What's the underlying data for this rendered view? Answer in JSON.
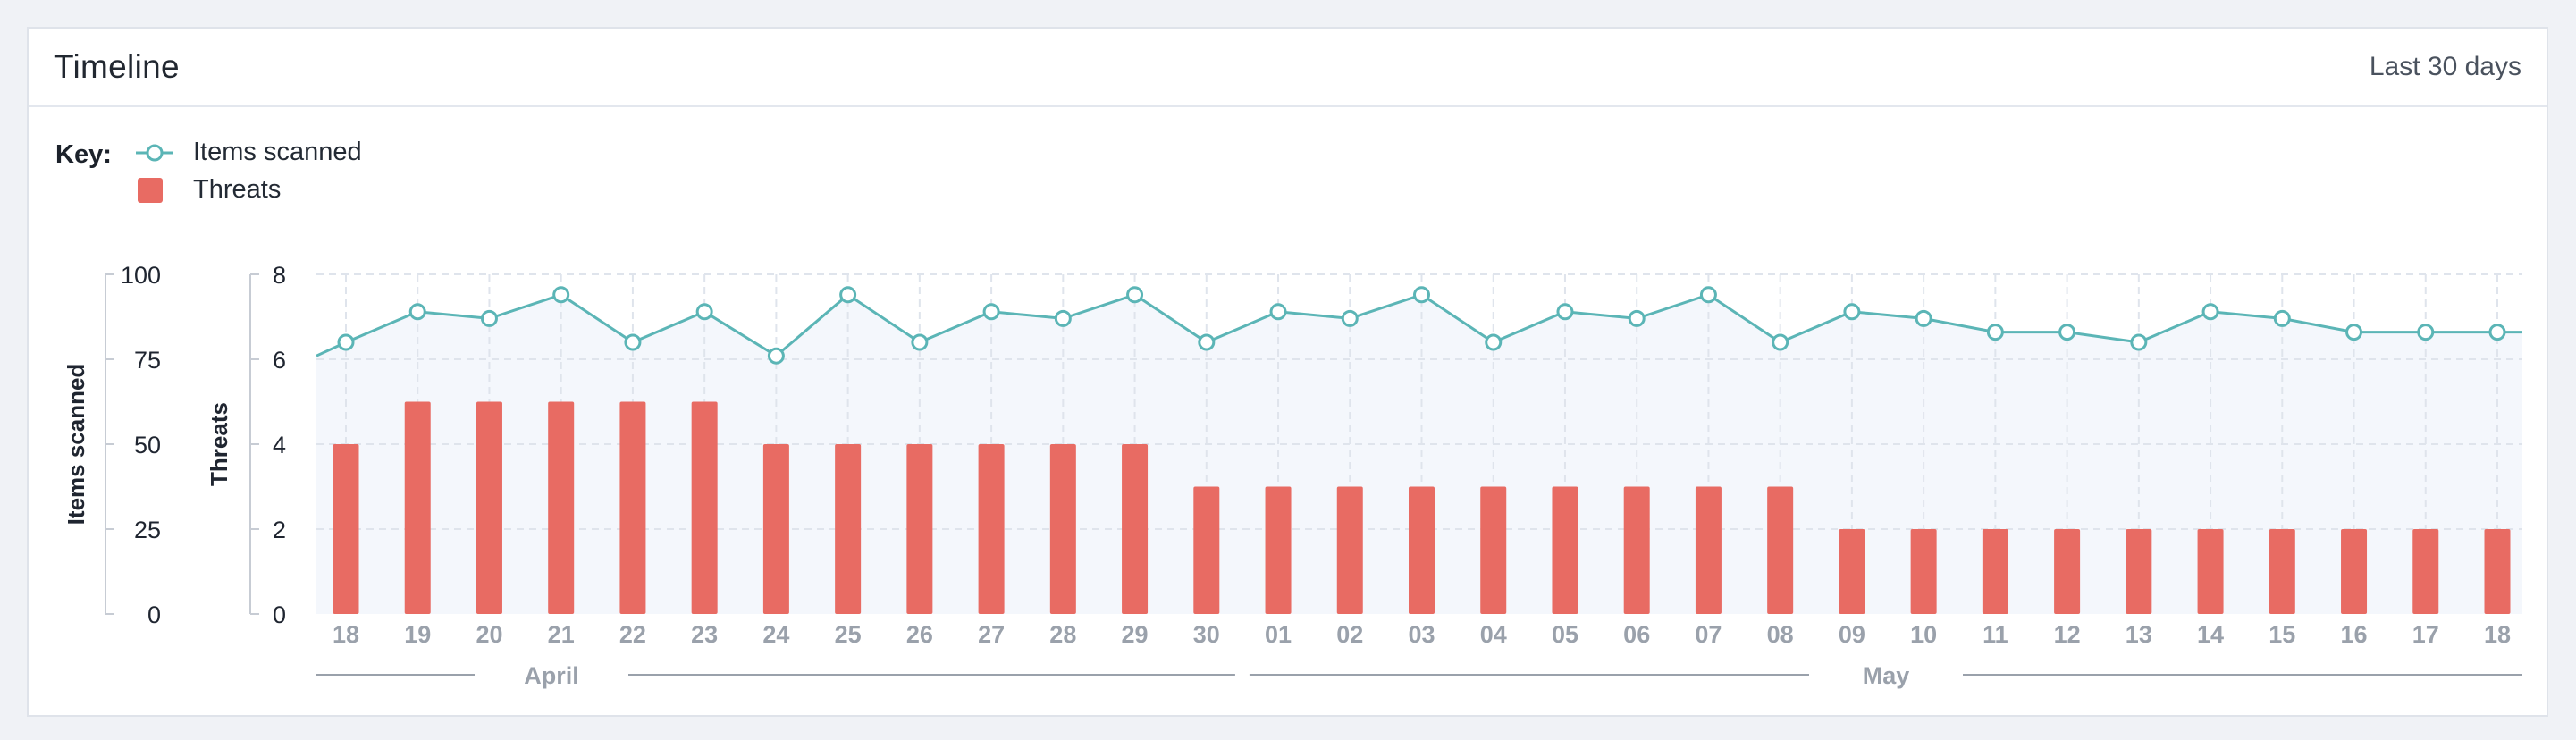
{
  "card": {
    "title": "Timeline",
    "range": "Last 30 days"
  },
  "legend": {
    "key_label": "Key:",
    "items": [
      {
        "label": "Items scanned",
        "marker": "circle-line",
        "color": "#5bb5b6"
      },
      {
        "label": "Threats",
        "marker": "square",
        "color": "#e86b63"
      }
    ]
  },
  "colors": {
    "line": "#5bb5b6",
    "bar": "#e86b63",
    "area": "#f4f7fc",
    "grid": "#dfe4ec",
    "axis_text": "#1f2530",
    "tick_text": "#9aa1ab"
  },
  "chart_data": {
    "type": "bar",
    "categories": [
      "18",
      "19",
      "20",
      "21",
      "22",
      "23",
      "24",
      "25",
      "26",
      "27",
      "28",
      "29",
      "30",
      "01",
      "02",
      "03",
      "04",
      "05",
      "06",
      "07",
      "08",
      "09",
      "10",
      "11",
      "12",
      "13",
      "14",
      "15",
      "16",
      "17",
      "18"
    ],
    "month_groups": [
      {
        "label": "April",
        "start": 0,
        "end": 12
      },
      {
        "label": "May",
        "start": 13,
        "end": 30
      }
    ],
    "series": [
      {
        "name": "Threats",
        "type": "bar",
        "axis": "Threats",
        "values": [
          4,
          5,
          5,
          5,
          5,
          5,
          4,
          4,
          4,
          4,
          4,
          4,
          3,
          3,
          3,
          3,
          3,
          3,
          3,
          3,
          3,
          2,
          2,
          2,
          2,
          2,
          2,
          2,
          2,
          2,
          2
        ]
      },
      {
        "name": "Items scanned",
        "type": "line",
        "axis": "Items scanned",
        "values": [
          80,
          89,
          87,
          94,
          80,
          89,
          76,
          94,
          80,
          89,
          87,
          94,
          80,
          89,
          87,
          94,
          80,
          89,
          87,
          94,
          80,
          89,
          87,
          83,
          83,
          80,
          89,
          87,
          83,
          83,
          83
        ]
      }
    ],
    "axes": {
      "left_outer": {
        "label": "Items scanned",
        "ticks": [
          0,
          25,
          50,
          75,
          100
        ],
        "range": [
          0,
          100
        ]
      },
      "left_inner": {
        "label": "Threats",
        "ticks": [
          0,
          2,
          4,
          6,
          8
        ],
        "range": [
          0,
          8
        ]
      }
    },
    "grid": true,
    "legend_position": "top-left"
  }
}
